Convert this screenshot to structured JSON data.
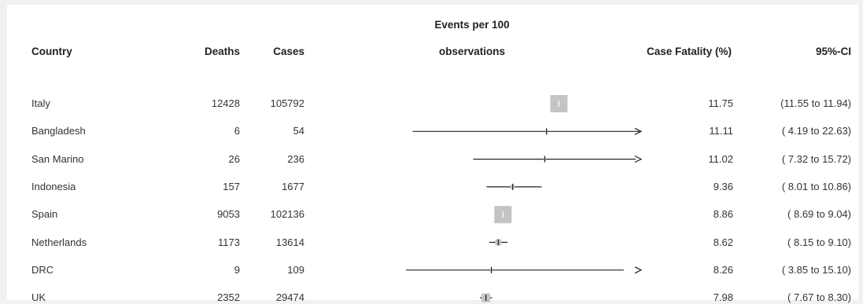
{
  "header": {
    "country": "Country",
    "deaths": "Deaths",
    "cases": "Cases",
    "plot_line1": "Events per 100",
    "plot_line2": "observations",
    "cf": "Case Fatality (%)",
    "ci": "95%-CI"
  },
  "chart_data": {
    "type": "forest",
    "x_label": "Events per 100 observations",
    "x_range_visible": [
      3.4,
      16.0
    ],
    "colors": {
      "line": "#222222",
      "box": "#c4c4c4"
    },
    "rows": [
      {
        "country": "Italy",
        "deaths": "12428",
        "cases": "105792",
        "cf": 11.75,
        "cf_text": "11.75",
        "lo": 11.55,
        "hi": 11.94,
        "ci_text": "(11.55 to 11.94)",
        "weight": 1.0,
        "arrow": false
      },
      {
        "country": "Bangladesh",
        "deaths": "6",
        "cases": "54",
        "cf": 11.11,
        "cf_text": "11.11",
        "lo": 4.19,
        "hi": 22.63,
        "ci_text": "( 4.19 to 22.63)",
        "weight": 0.01,
        "arrow": true
      },
      {
        "country": "San Marino",
        "deaths": "26",
        "cases": "236",
        "cf": 11.02,
        "cf_text": "11.02",
        "lo": 7.32,
        "hi": 15.72,
        "ci_text": "( 7.32 to 15.72)",
        "weight": 0.01,
        "arrow": true
      },
      {
        "country": "Indonesia",
        "deaths": "157",
        "cases": "1677",
        "cf": 9.36,
        "cf_text": "9.36",
        "lo": 8.01,
        "hi": 10.86,
        "ci_text": "( 8.01 to 10.86)",
        "weight": 0.06,
        "arrow": false
      },
      {
        "country": "Spain",
        "deaths": "9053",
        "cases": "102136",
        "cf": 8.86,
        "cf_text": "8.86",
        "lo": 8.69,
        "hi": 9.04,
        "ci_text": "( 8.69 to  9.04)",
        "weight": 1.0,
        "arrow": false
      },
      {
        "country": "Netherlands",
        "deaths": "1173",
        "cases": "13614",
        "cf": 8.62,
        "cf_text": "8.62",
        "lo": 8.15,
        "hi": 9.1,
        "ci_text": "( 8.15 to  9.10)",
        "weight": 0.12,
        "arrow": false
      },
      {
        "country": "DRC",
        "deaths": "9",
        "cases": "109",
        "cf": 8.26,
        "cf_text": "8.26",
        "lo": 3.85,
        "hi": 15.1,
        "ci_text": "( 3.85 to 15.10)",
        "weight": 0.01,
        "arrow": true
      },
      {
        "country": "UK",
        "deaths": "2352",
        "cases": "29474",
        "cf": 7.98,
        "cf_text": "7.98",
        "lo": 7.67,
        "hi": 8.3,
        "ci_text": "( 7.67 to  8.30)",
        "weight": 0.25,
        "arrow": false
      }
    ]
  }
}
